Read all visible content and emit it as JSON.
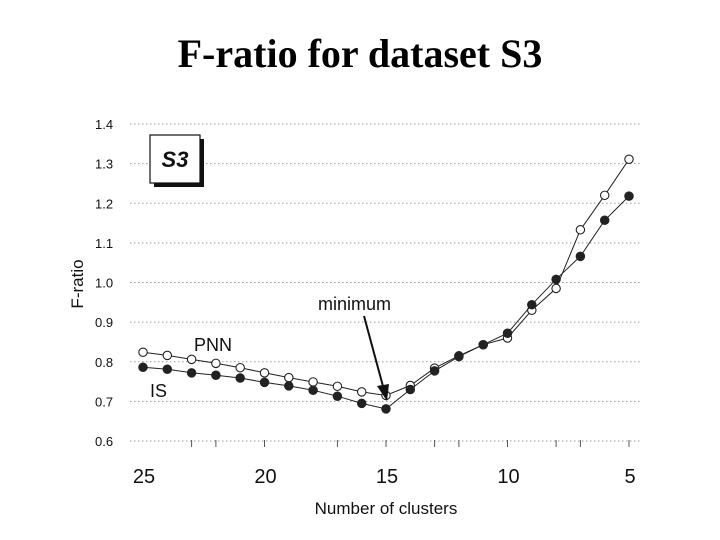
{
  "page": {
    "title": "F-ratio for dataset S3"
  },
  "chart_data": {
    "type": "line",
    "ylabel": "F-ratio",
    "xlabel": "Number of clusters",
    "ylim": [
      0.6,
      1.4
    ],
    "xlim": [
      25,
      5
    ],
    "x_reversed": true,
    "yticks": [
      "1.4",
      "1.3",
      "1.2",
      "1.1",
      "1.0",
      "0.9",
      "0.8",
      "0.7",
      "0.6"
    ],
    "ytick_values": [
      1.4,
      1.3,
      1.2,
      1.1,
      1.0,
      0.9,
      0.8,
      0.7,
      0.6
    ],
    "xticks": [
      "25",
      "20",
      "15",
      "10",
      "5"
    ],
    "xtick_values": [
      25,
      20,
      15,
      10,
      5
    ],
    "grid": "horizontal dotted",
    "x": [
      25,
      24,
      23,
      22,
      21,
      20,
      19,
      18,
      17,
      16,
      15,
      14,
      13,
      12,
      11,
      10,
      9,
      8,
      7,
      6,
      5
    ],
    "series": [
      {
        "name": "PNN",
        "marker": "open-circle",
        "color": "#222222",
        "values": [
          0.824,
          0.816,
          0.806,
          0.796,
          0.785,
          0.772,
          0.76,
          0.749,
          0.738,
          0.724,
          0.715,
          0.74,
          0.784,
          0.815,
          0.843,
          0.86,
          0.93,
          0.985,
          1.133,
          1.22,
          1.311
        ]
      },
      {
        "name": "IS",
        "marker": "filled-circle",
        "color": "#222222",
        "values": [
          0.786,
          0.781,
          0.772,
          0.766,
          0.759,
          0.748,
          0.739,
          0.728,
          0.713,
          0.695,
          0.681,
          0.73,
          0.777,
          0.813,
          0.843,
          0.872,
          0.944,
          1.008,
          1.066,
          1.157,
          1.218
        ]
      }
    ],
    "annotations": {
      "badge": "S3",
      "minimum_label": "minimum",
      "pnn_label": "PNN",
      "is_label": "IS"
    }
  }
}
